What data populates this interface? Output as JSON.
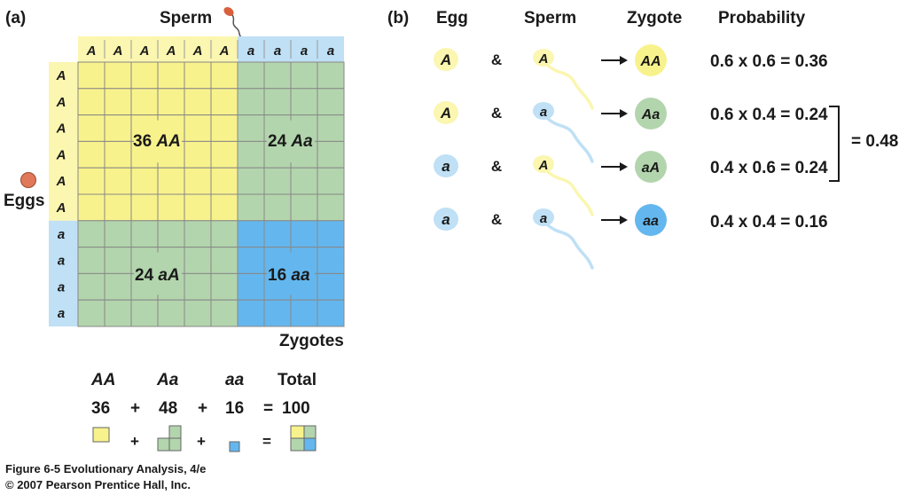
{
  "panel_a": {
    "label": "(a)",
    "sperm_label": "Sperm",
    "eggs_label": "Eggs",
    "zygotes_label": "Zygotes",
    "sperm_alleles": [
      "A",
      "A",
      "A",
      "A",
      "A",
      "A",
      "a",
      "a",
      "a",
      "a"
    ],
    "egg_alleles": [
      "A",
      "A",
      "A",
      "A",
      "A",
      "A",
      "a",
      "a",
      "a",
      "a"
    ],
    "regions": {
      "AA": {
        "count": "36",
        "genotype": "AA"
      },
      "Aa": {
        "count": "24",
        "genotype": "Aa"
      },
      "aA": {
        "count": "24",
        "genotype": "aA"
      },
      "aa": {
        "count": "16",
        "genotype": "aa"
      }
    },
    "colors": {
      "A": "#f8f28c",
      "a": "#64b7ee",
      "mixed": "#b3d5ad",
      "header_A": "#fbf6b0",
      "header_a": "#bfe0f5",
      "egg": "#e0785a",
      "grid": "#888888"
    }
  },
  "sum": {
    "headers": [
      "AA",
      "Aa",
      "aa",
      "Total"
    ],
    "values": [
      "36",
      "48",
      "16",
      "100"
    ],
    "plus": "+",
    "equals": "="
  },
  "panel_b": {
    "label": "(b)",
    "headers": {
      "egg": "Egg",
      "sperm": "Sperm",
      "zygote": "Zygote",
      "probability": "Probability"
    },
    "rows": [
      {
        "egg": "A",
        "amp": "&",
        "sperm": "A",
        "zygote": "AA",
        "prob": "0.6 x 0.6 = 0.36"
      },
      {
        "egg": "A",
        "amp": "&",
        "sperm": "a",
        "zygote": "Aa",
        "prob": "0.6 x 0.4 = 0.24"
      },
      {
        "egg": "a",
        "amp": "&",
        "sperm": "A",
        "zygote": "aA",
        "prob": "0.4 x 0.6 = 0.24"
      },
      {
        "egg": "a",
        "amp": "&",
        "sperm": "a",
        "zygote": "aa",
        "prob": "0.4 x 0.4 = 0.16"
      }
    ],
    "bracket_total": "= 0.48"
  },
  "caption": {
    "line1": "Figure 6-5 Evolutionary Analysis, 4/e",
    "line2": "© 2007 Pearson Prentice Hall, Inc."
  }
}
